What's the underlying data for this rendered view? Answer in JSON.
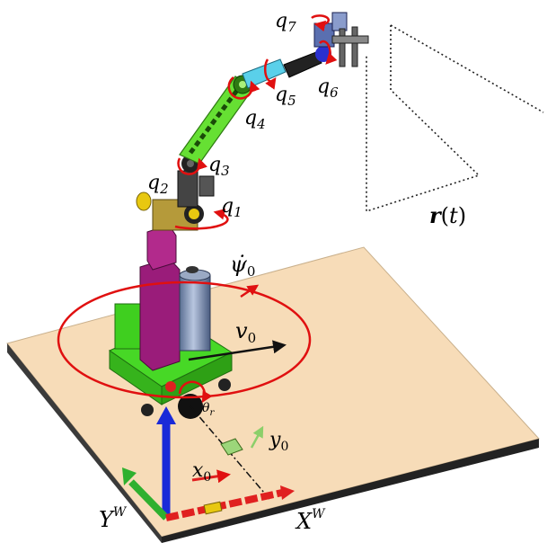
{
  "labels": {
    "q7": "q7",
    "q6": "q6",
    "q5": "q5",
    "q4": "q4",
    "q3": "q3",
    "q2": "q2",
    "q1": "q1",
    "psi_dot": "ψ̇0",
    "v0": "v0",
    "theta_r": "θr",
    "y0": "y0",
    "x0": "x0",
    "YW": "YW",
    "XW": "XW",
    "rt": "r(t)"
  },
  "colors": {
    "platform_top": "#f7dcb8",
    "platform_side": "#2a2a2a",
    "base_green": "#3fcf1f",
    "arm_green": "#66e033",
    "magenta": "#9a1c7a",
    "cylinder": "#7f93b5",
    "rotation_red": "#e01010",
    "axis_blue": "#1a2ad8",
    "axis_green": "#33c033",
    "axis_red": "#e02020",
    "joint_yellow": "#e8c810"
  }
}
